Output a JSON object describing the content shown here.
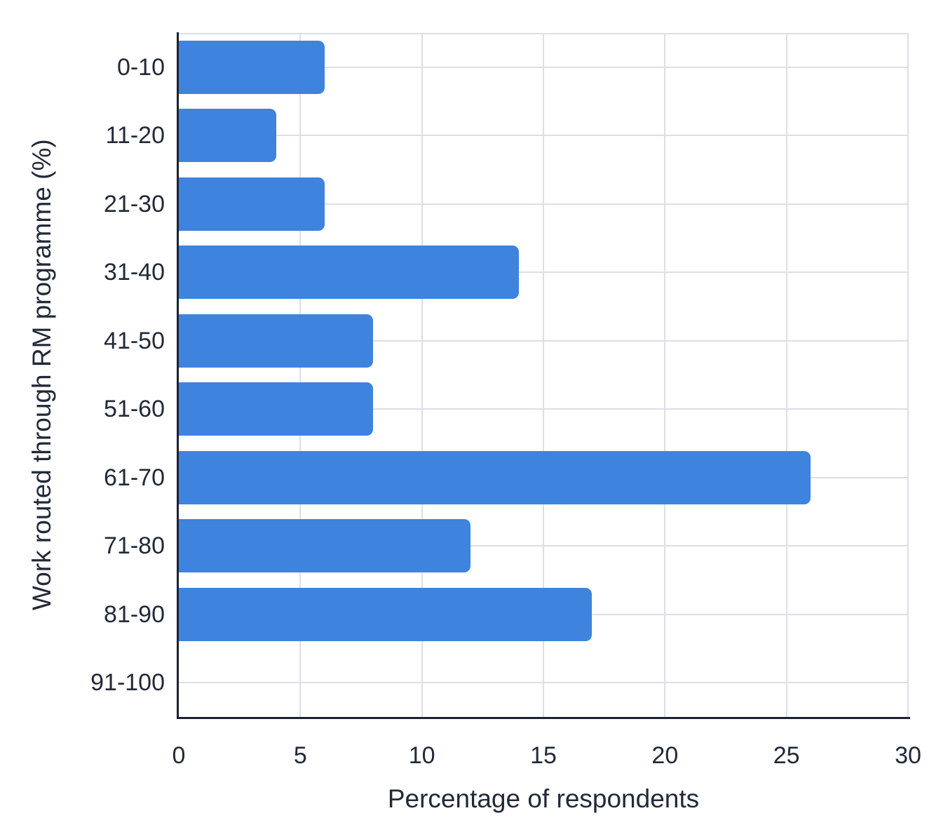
{
  "chart_data": {
    "type": "bar",
    "orientation": "horizontal",
    "title": "",
    "xlabel": "Percentage of respondents",
    "ylabel": "Work routed through RM programme (%)",
    "categories": [
      "0-10",
      "11-20",
      "21-30",
      "31-40",
      "41-50",
      "51-60",
      "61-70",
      "71-80",
      "81-90",
      "91-100"
    ],
    "values": [
      6,
      4,
      6,
      14,
      8,
      8,
      26,
      12,
      17,
      0
    ],
    "xlim": [
      0,
      30
    ],
    "x_ticks": [
      0,
      5,
      10,
      15,
      20,
      25,
      30
    ],
    "grid": "on",
    "legend": "none",
    "style": {
      "bar_color": "#3e83dd",
      "grid_color": "#dbdfe8",
      "axis_color": "#1d2230",
      "text_color": "#222a38",
      "background_color": "#ffffff"
    }
  }
}
